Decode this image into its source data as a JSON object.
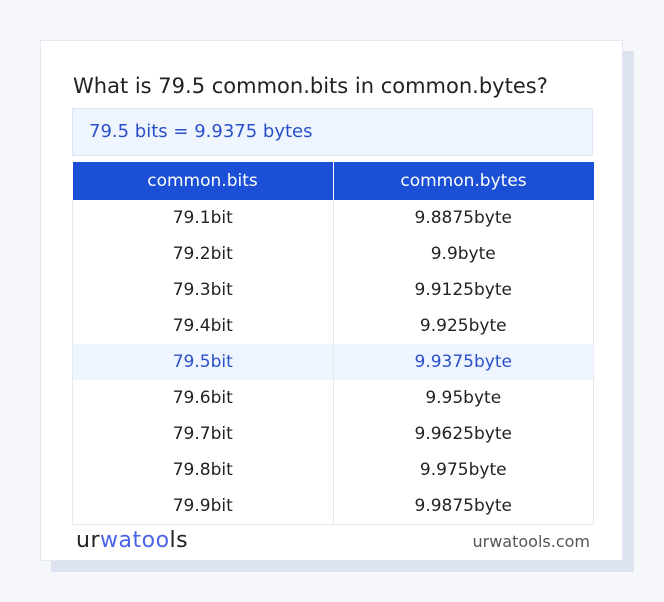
{
  "title": "What is 79.5 common.bits in common.bytes?",
  "result": "79.5 bits = 9.9375 bytes",
  "table": {
    "headers": [
      "common.bits",
      "common.bytes"
    ],
    "rows": [
      [
        "79.1bit",
        "9.8875byte"
      ],
      [
        "79.2bit",
        "9.9byte"
      ],
      [
        "79.3bit",
        "9.9125byte"
      ],
      [
        "79.4bit",
        "9.925byte"
      ],
      [
        "79.5bit",
        "9.9375byte"
      ],
      [
        "79.6bit",
        "9.95byte"
      ],
      [
        "79.7bit",
        "9.9625byte"
      ],
      [
        "79.8bit",
        "9.975byte"
      ],
      [
        "79.9bit",
        "9.9875byte"
      ]
    ],
    "highlighted_row": 4
  },
  "footer": {
    "logo": "urwatools",
    "logo_parts": [
      "ur",
      "wat",
      "oo",
      "ls"
    ],
    "site": "urwatools.com"
  },
  "colors": {
    "accent": "#1a4fd6",
    "highlight_text": "#2a50c8",
    "highlight_bg": "#eef5fe"
  }
}
